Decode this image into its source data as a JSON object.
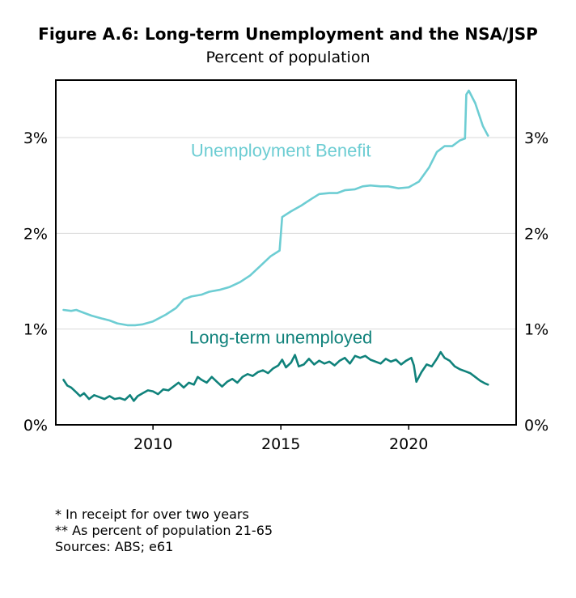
{
  "chart_data": {
    "type": "line",
    "title": "Figure A.6: Long-term Unemployment and the NSA/JSP",
    "subtitle": "Percent of population",
    "x_ticks": [
      2010,
      2015,
      2020
    ],
    "xlim": [
      2006.2,
      2024.2
    ],
    "ylim": [
      0,
      3.6
    ],
    "y_ticks": [
      {
        "value": 0,
        "label": "0%"
      },
      {
        "value": 1,
        "label": "1%"
      },
      {
        "value": 2,
        "label": "2%"
      },
      {
        "value": 3,
        "label": "3%"
      }
    ],
    "grid": true,
    "series": [
      {
        "name": "Unemployment Benefit",
        "color": "#6dcdd3",
        "points": [
          [
            2006.5,
            1.2
          ],
          [
            2006.8,
            1.19
          ],
          [
            2007.0,
            1.2
          ],
          [
            2007.3,
            1.17
          ],
          [
            2007.6,
            1.14
          ],
          [
            2008.0,
            1.11
          ],
          [
            2008.3,
            1.09
          ],
          [
            2008.6,
            1.06
          ],
          [
            2009.0,
            1.04
          ],
          [
            2009.3,
            1.04
          ],
          [
            2009.6,
            1.05
          ],
          [
            2010.0,
            1.08
          ],
          [
            2010.5,
            1.15
          ],
          [
            2010.9,
            1.22
          ],
          [
            2011.2,
            1.31
          ],
          [
            2011.5,
            1.34
          ],
          [
            2011.9,
            1.36
          ],
          [
            2012.2,
            1.39
          ],
          [
            2012.6,
            1.41
          ],
          [
            2013.0,
            1.44
          ],
          [
            2013.4,
            1.49
          ],
          [
            2013.8,
            1.56
          ],
          [
            2014.2,
            1.66
          ],
          [
            2014.6,
            1.76
          ],
          [
            2014.95,
            1.82
          ],
          [
            2015.05,
            2.17
          ],
          [
            2015.4,
            2.23
          ],
          [
            2015.8,
            2.29
          ],
          [
            2016.2,
            2.36
          ],
          [
            2016.5,
            2.41
          ],
          [
            2016.9,
            2.42
          ],
          [
            2017.2,
            2.42
          ],
          [
            2017.5,
            2.45
          ],
          [
            2017.9,
            2.46
          ],
          [
            2018.2,
            2.49
          ],
          [
            2018.5,
            2.5
          ],
          [
            2018.9,
            2.49
          ],
          [
            2019.2,
            2.49
          ],
          [
            2019.6,
            2.47
          ],
          [
            2020.0,
            2.48
          ],
          [
            2020.4,
            2.54
          ],
          [
            2020.8,
            2.69
          ],
          [
            2021.1,
            2.85
          ],
          [
            2021.4,
            2.91
          ],
          [
            2021.7,
            2.91
          ],
          [
            2022.0,
            2.97
          ],
          [
            2022.2,
            2.99
          ],
          [
            2022.25,
            3.45
          ],
          [
            2022.35,
            3.49
          ],
          [
            2022.6,
            3.36
          ],
          [
            2022.9,
            3.12
          ],
          [
            2023.1,
            3.02
          ]
        ]
      },
      {
        "name": "Long-term unemployed",
        "color": "#10827b",
        "points": [
          [
            2006.5,
            0.47
          ],
          [
            2006.65,
            0.41
          ],
          [
            2006.8,
            0.39
          ],
          [
            2007.0,
            0.34
          ],
          [
            2007.15,
            0.3
          ],
          [
            2007.3,
            0.33
          ],
          [
            2007.5,
            0.27
          ],
          [
            2007.7,
            0.31
          ],
          [
            2007.9,
            0.29
          ],
          [
            2008.1,
            0.27
          ],
          [
            2008.3,
            0.3
          ],
          [
            2008.5,
            0.27
          ],
          [
            2008.7,
            0.28
          ],
          [
            2008.9,
            0.26
          ],
          [
            2009.1,
            0.31
          ],
          [
            2009.25,
            0.25
          ],
          [
            2009.4,
            0.3
          ],
          [
            2009.6,
            0.33
          ],
          [
            2009.8,
            0.36
          ],
          [
            2010.0,
            0.35
          ],
          [
            2010.2,
            0.32
          ],
          [
            2010.4,
            0.37
          ],
          [
            2010.6,
            0.36
          ],
          [
            2010.8,
            0.4
          ],
          [
            2011.0,
            0.44
          ],
          [
            2011.2,
            0.39
          ],
          [
            2011.4,
            0.44
          ],
          [
            2011.6,
            0.42
          ],
          [
            2011.75,
            0.5
          ],
          [
            2011.9,
            0.47
          ],
          [
            2012.1,
            0.44
          ],
          [
            2012.3,
            0.5
          ],
          [
            2012.5,
            0.45
          ],
          [
            2012.7,
            0.4
          ],
          [
            2012.9,
            0.45
          ],
          [
            2013.1,
            0.48
          ],
          [
            2013.3,
            0.44
          ],
          [
            2013.5,
            0.5
          ],
          [
            2013.7,
            0.53
          ],
          [
            2013.9,
            0.51
          ],
          [
            2014.1,
            0.55
          ],
          [
            2014.3,
            0.57
          ],
          [
            2014.5,
            0.54
          ],
          [
            2014.7,
            0.59
          ],
          [
            2014.9,
            0.62
          ],
          [
            2015.05,
            0.68
          ],
          [
            2015.2,
            0.6
          ],
          [
            2015.4,
            0.65
          ],
          [
            2015.55,
            0.73
          ],
          [
            2015.7,
            0.61
          ],
          [
            2015.9,
            0.63
          ],
          [
            2016.1,
            0.69
          ],
          [
            2016.3,
            0.63
          ],
          [
            2016.5,
            0.67
          ],
          [
            2016.7,
            0.64
          ],
          [
            2016.9,
            0.66
          ],
          [
            2017.1,
            0.62
          ],
          [
            2017.3,
            0.67
          ],
          [
            2017.5,
            0.7
          ],
          [
            2017.7,
            0.64
          ],
          [
            2017.9,
            0.72
          ],
          [
            2018.1,
            0.7
          ],
          [
            2018.3,
            0.72
          ],
          [
            2018.5,
            0.68
          ],
          [
            2018.7,
            0.66
          ],
          [
            2018.9,
            0.64
          ],
          [
            2019.1,
            0.69
          ],
          [
            2019.3,
            0.66
          ],
          [
            2019.5,
            0.68
          ],
          [
            2019.7,
            0.63
          ],
          [
            2019.9,
            0.67
          ],
          [
            2020.1,
            0.7
          ],
          [
            2020.2,
            0.62
          ],
          [
            2020.3,
            0.45
          ],
          [
            2020.5,
            0.55
          ],
          [
            2020.7,
            0.63
          ],
          [
            2020.9,
            0.61
          ],
          [
            2021.1,
            0.69
          ],
          [
            2021.25,
            0.76
          ],
          [
            2021.4,
            0.7
          ],
          [
            2021.6,
            0.67
          ],
          [
            2021.8,
            0.61
          ],
          [
            2022.0,
            0.58
          ],
          [
            2022.2,
            0.56
          ],
          [
            2022.4,
            0.54
          ],
          [
            2022.6,
            0.5
          ],
          [
            2022.8,
            0.46
          ],
          [
            2023.0,
            0.43
          ],
          [
            2023.1,
            0.42
          ]
        ]
      }
    ],
    "annotations": [
      {
        "text": "Unemployment Benefit",
        "series": 0
      },
      {
        "text": "Long-term unemployed",
        "series": 1
      }
    ]
  },
  "notes": [
    "* In receipt for over two years",
    "** As percent of population 21-65",
    "Sources: ABS; e61"
  ]
}
